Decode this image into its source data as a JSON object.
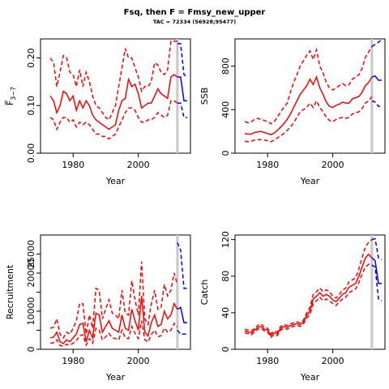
{
  "title": "Fsq, then F = Fmsy_new_upper",
  "subtitle": "TAC = 72334 (56928;95477)",
  "colors": {
    "historic": "#ff0000",
    "forecast": "#0000ff",
    "vline": "#c8c8c8"
  },
  "vline_year": 2012,
  "chart_data": [
    {
      "type": "line",
      "ylabel": "F̅ 3–7",
      "ylabel_main": "F",
      "ylabel_sub": "3−7",
      "xlabel": "Year",
      "xlim": [
        1970,
        2016
      ],
      "ylim": [
        0,
        0.24
      ],
      "xticks": [
        1980,
        2000
      ],
      "yticks": [
        0.0,
        0.1,
        0.2
      ],
      "ytick_labels": [
        "0.00",
        "0.10",
        "0.20"
      ],
      "grid": false,
      "x": [
        1973,
        1974,
        1975,
        1976,
        1977,
        1978,
        1979,
        1980,
        1981,
        1982,
        1983,
        1984,
        1985,
        1986,
        1987,
        1988,
        1989,
        1990,
        1991,
        1992,
        1993,
        1994,
        1995,
        1996,
        1997,
        1998,
        1999,
        2000,
        2001,
        2002,
        2003,
        2004,
        2005,
        2006,
        2007,
        2008,
        2009,
        2010,
        2011,
        2012
      ],
      "series": [
        {
          "role": "estimate",
          "values": [
            0.12,
            0.11,
            0.085,
            0.1,
            0.13,
            0.125,
            0.11,
            0.12,
            0.09,
            0.11,
            0.095,
            0.11,
            0.1,
            0.08,
            0.07,
            0.065,
            0.06,
            0.055,
            0.05,
            0.055,
            0.06,
            0.09,
            0.11,
            0.115,
            0.155,
            0.14,
            0.145,
            0.125,
            0.095,
            0.1,
            0.105,
            0.105,
            0.12,
            0.135,
            0.125,
            0.12,
            0.115,
            0.16,
            0.165,
            0.16
          ]
        },
        {
          "role": "upper",
          "values": [
            0.2,
            0.19,
            0.14,
            0.17,
            0.205,
            0.2,
            0.17,
            0.165,
            0.14,
            0.175,
            0.14,
            0.17,
            0.15,
            0.12,
            0.1,
            0.095,
            0.085,
            0.075,
            0.07,
            0.085,
            0.1,
            0.14,
            0.18,
            0.22,
            0.2,
            0.2,
            0.18,
            0.16,
            0.13,
            0.14,
            0.14,
            0.15,
            0.19,
            0.185,
            0.17,
            0.165,
            0.175,
            0.235,
            0.235,
            0.235
          ]
        },
        {
          "role": "lower",
          "values": [
            0.075,
            0.07,
            0.05,
            0.065,
            0.075,
            0.075,
            0.065,
            0.07,
            0.055,
            0.065,
            0.06,
            0.065,
            0.06,
            0.05,
            0.04,
            0.04,
            0.035,
            0.035,
            0.03,
            0.035,
            0.04,
            0.055,
            0.07,
            0.085,
            0.095,
            0.095,
            0.09,
            0.075,
            0.065,
            0.065,
            0.07,
            0.07,
            0.075,
            0.085,
            0.08,
            0.075,
            0.08,
            0.11,
            0.11,
            0.105
          ]
        }
      ],
      "forecast": {
        "x": [
          2012,
          2013,
          2014,
          2015
        ],
        "estimate": [
          0.16,
          0.16,
          0.11,
          0.11
        ],
        "upper": [
          0.23,
          0.23,
          0.165,
          0.16
        ],
        "lower": [
          0.105,
          0.105,
          0.075,
          0.075
        ]
      }
    },
    {
      "type": "line",
      "ylabel": "SSB",
      "xlabel": "Year",
      "xlim": [
        1970,
        2016
      ],
      "ylim": [
        0,
        1050
      ],
      "xticks": [
        1980,
        2000
      ],
      "yticks": [
        0,
        400,
        800
      ],
      "ytick_labels": [
        "0",
        "400",
        "800"
      ],
      "grid": false,
      "x": [
        1973,
        1974,
        1975,
        1976,
        1977,
        1978,
        1979,
        1980,
        1981,
        1982,
        1983,
        1984,
        1985,
        1986,
        1987,
        1988,
        1989,
        1990,
        1991,
        1992,
        1993,
        1994,
        1995,
        1996,
        1997,
        1998,
        1999,
        2000,
        2001,
        2002,
        2003,
        2004,
        2005,
        2006,
        2007,
        2008,
        2009,
        2010,
        2011,
        2012
      ],
      "series": [
        {
          "role": "estimate",
          "values": [
            180,
            175,
            175,
            190,
            195,
            200,
            190,
            180,
            170,
            185,
            210,
            240,
            270,
            310,
            360,
            420,
            480,
            540,
            580,
            620,
            680,
            630,
            700,
            600,
            540,
            470,
            430,
            420,
            440,
            450,
            470,
            460,
            460,
            500,
            510,
            520,
            560,
            620,
            650,
            700
          ]
        },
        {
          "role": "upper",
          "values": [
            290,
            280,
            290,
            310,
            320,
            310,
            300,
            290,
            270,
            290,
            330,
            380,
            420,
            460,
            560,
            650,
            720,
            800,
            850,
            900,
            940,
            860,
            950,
            800,
            740,
            650,
            600,
            580,
            600,
            620,
            640,
            620,
            630,
            680,
            700,
            720,
            780,
            880,
            930,
            980
          ]
        },
        {
          "role": "lower",
          "values": [
            110,
            105,
            110,
            120,
            125,
            125,
            120,
            115,
            105,
            120,
            140,
            160,
            180,
            210,
            240,
            280,
            330,
            380,
            400,
            420,
            460,
            420,
            480,
            420,
            380,
            330,
            300,
            290,
            310,
            320,
            330,
            320,
            330,
            360,
            370,
            380,
            410,
            460,
            480,
            520
          ]
        }
      ],
      "forecast": {
        "x": [
          2012,
          2013,
          2014,
          2015
        ],
        "estimate": [
          700,
          710,
          670,
          670
        ],
        "upper": [
          980,
          1000,
          1020,
          1040
        ],
        "lower": [
          480,
          470,
          430,
          430
        ]
      }
    },
    {
      "type": "line",
      "ylabel": "Recruitment",
      "xlabel": "Year",
      "xlim": [
        1970,
        2016
      ],
      "ylim": [
        0,
        30000
      ],
      "xticks": [
        1980,
        2000
      ],
      "yticks": [
        0,
        5000,
        10000,
        15000,
        20000,
        25000
      ],
      "ytick_labels": [
        "0",
        "",
        "10000",
        "",
        "20000",
        "25000"
      ],
      "grid": false,
      "x": [
        1973,
        1974,
        1975,
        1976,
        1977,
        1978,
        1979,
        1980,
        1981,
        1982,
        1983,
        1984,
        1985,
        1986,
        1987,
        1988,
        1989,
        1990,
        1991,
        1992,
        1993,
        1994,
        1995,
        1996,
        1997,
        1998,
        1999,
        2000,
        2001,
        2002,
        2003,
        2004,
        2005,
        2006,
        2007,
        2008,
        2009,
        2010,
        2011,
        2012
      ],
      "series": [
        {
          "role": "estimate",
          "values": [
            3000,
            3200,
            4500,
            2000,
            1500,
            2500,
            2000,
            3000,
            4000,
            6500,
            6800,
            2000,
            5000,
            3000,
            9500,
            9000,
            4500,
            6000,
            7500,
            5500,
            5000,
            4500,
            9000,
            5500,
            5000,
            10500,
            7500,
            5000,
            14000,
            4500,
            3500,
            7000,
            9000,
            6000,
            6500,
            10000,
            8000,
            9000,
            12000,
            10500
          ]
        },
        {
          "role": "upper",
          "values": [
            5500,
            5800,
            8000,
            4000,
            3000,
            4500,
            4000,
            5500,
            7500,
            12000,
            12000,
            4000,
            9000,
            5500,
            16000,
            15500,
            8000,
            10500,
            13000,
            9500,
            9000,
            8000,
            15500,
            9500,
            9000,
            18000,
            13000,
            9000,
            23000,
            8000,
            6500,
            12000,
            15500,
            10500,
            11000,
            17000,
            14000,
            15500,
            20000,
            17000
          ]
        },
        {
          "role": "lower",
          "values": [
            1600,
            1700,
            2500,
            1000,
            800,
            1300,
            1100,
            1600,
            2200,
            3600,
            3800,
            1100,
            2800,
            1600,
            5500,
            5000,
            2500,
            3300,
            4200,
            3000,
            2800,
            2500,
            5000,
            3000,
            2800,
            6000,
            4200,
            2800,
            7500,
            2500,
            1900,
            3900,
            5000,
            3300,
            3600,
            5600,
            4500,
            5000,
            6800,
            5800
          ]
        }
      ],
      "forecast": {
        "x": [
          2012,
          2013,
          2014,
          2015
        ],
        "estimate": [
          10500,
          11000,
          7000,
          7000
        ],
        "upper": [
          28000,
          26000,
          16000,
          16000
        ],
        "lower": [
          5000,
          4000,
          4000,
          4000
        ]
      }
    },
    {
      "type": "line",
      "ylabel": "Catch",
      "xlabel": "Year",
      "xlim": [
        1970,
        2016
      ],
      "ylim": [
        0,
        125
      ],
      "xticks": [
        1980,
        2000
      ],
      "yticks": [
        0,
        40,
        80,
        120
      ],
      "ytick_labels": [
        "0",
        "40",
        "80",
        "120"
      ],
      "grid": false,
      "x": [
        1973,
        1974,
        1975,
        1976,
        1977,
        1978,
        1979,
        1980,
        1981,
        1982,
        1983,
        1984,
        1985,
        1986,
        1987,
        1988,
        1989,
        1990,
        1991,
        1992,
        1993,
        1994,
        1995,
        1996,
        1997,
        1998,
        1999,
        2000,
        2001,
        2002,
        2003,
        2004,
        2005,
        2006,
        2007,
        2008,
        2009,
        2010,
        2011,
        2012
      ],
      "series": [
        {
          "role": "estimate",
          "values": [
            20,
            19,
            18,
            21,
            24,
            25,
            22,
            21,
            15,
            18,
            17,
            23,
            25,
            24,
            26,
            27,
            28,
            27,
            30,
            37,
            42,
            55,
            58,
            62,
            58,
            60,
            58,
            54,
            52,
            56,
            60,
            62,
            68,
            70,
            72,
            80,
            90,
            100,
            104,
            100
          ]
        },
        {
          "role": "upper",
          "values": [
            22,
            21,
            20,
            23,
            26,
            28,
            24,
            23,
            17,
            20,
            19,
            25,
            27,
            26,
            28,
            29,
            30,
            29,
            32,
            40,
            46,
            60,
            63,
            67,
            63,
            65,
            63,
            58,
            56,
            60,
            65,
            67,
            74,
            76,
            78,
            88,
            100,
            112,
            117,
            120
          ]
        },
        {
          "role": "lower",
          "values": [
            18,
            17,
            16,
            19,
            22,
            23,
            20,
            19,
            13,
            16,
            15,
            21,
            23,
            22,
            24,
            25,
            26,
            25,
            28,
            34,
            38,
            50,
            53,
            57,
            53,
            55,
            53,
            50,
            48,
            52,
            55,
            57,
            62,
            64,
            66,
            73,
            82,
            90,
            93,
            92
          ]
        }
      ],
      "forecast": {
        "x": [
          2012,
          2013,
          2014,
          2015
        ],
        "estimate": [
          100,
          97,
          72,
          72
        ],
        "upper": [
          120,
          121,
          100,
          98
        ],
        "lower": [
          92,
          90,
          55,
          53
        ]
      }
    }
  ]
}
